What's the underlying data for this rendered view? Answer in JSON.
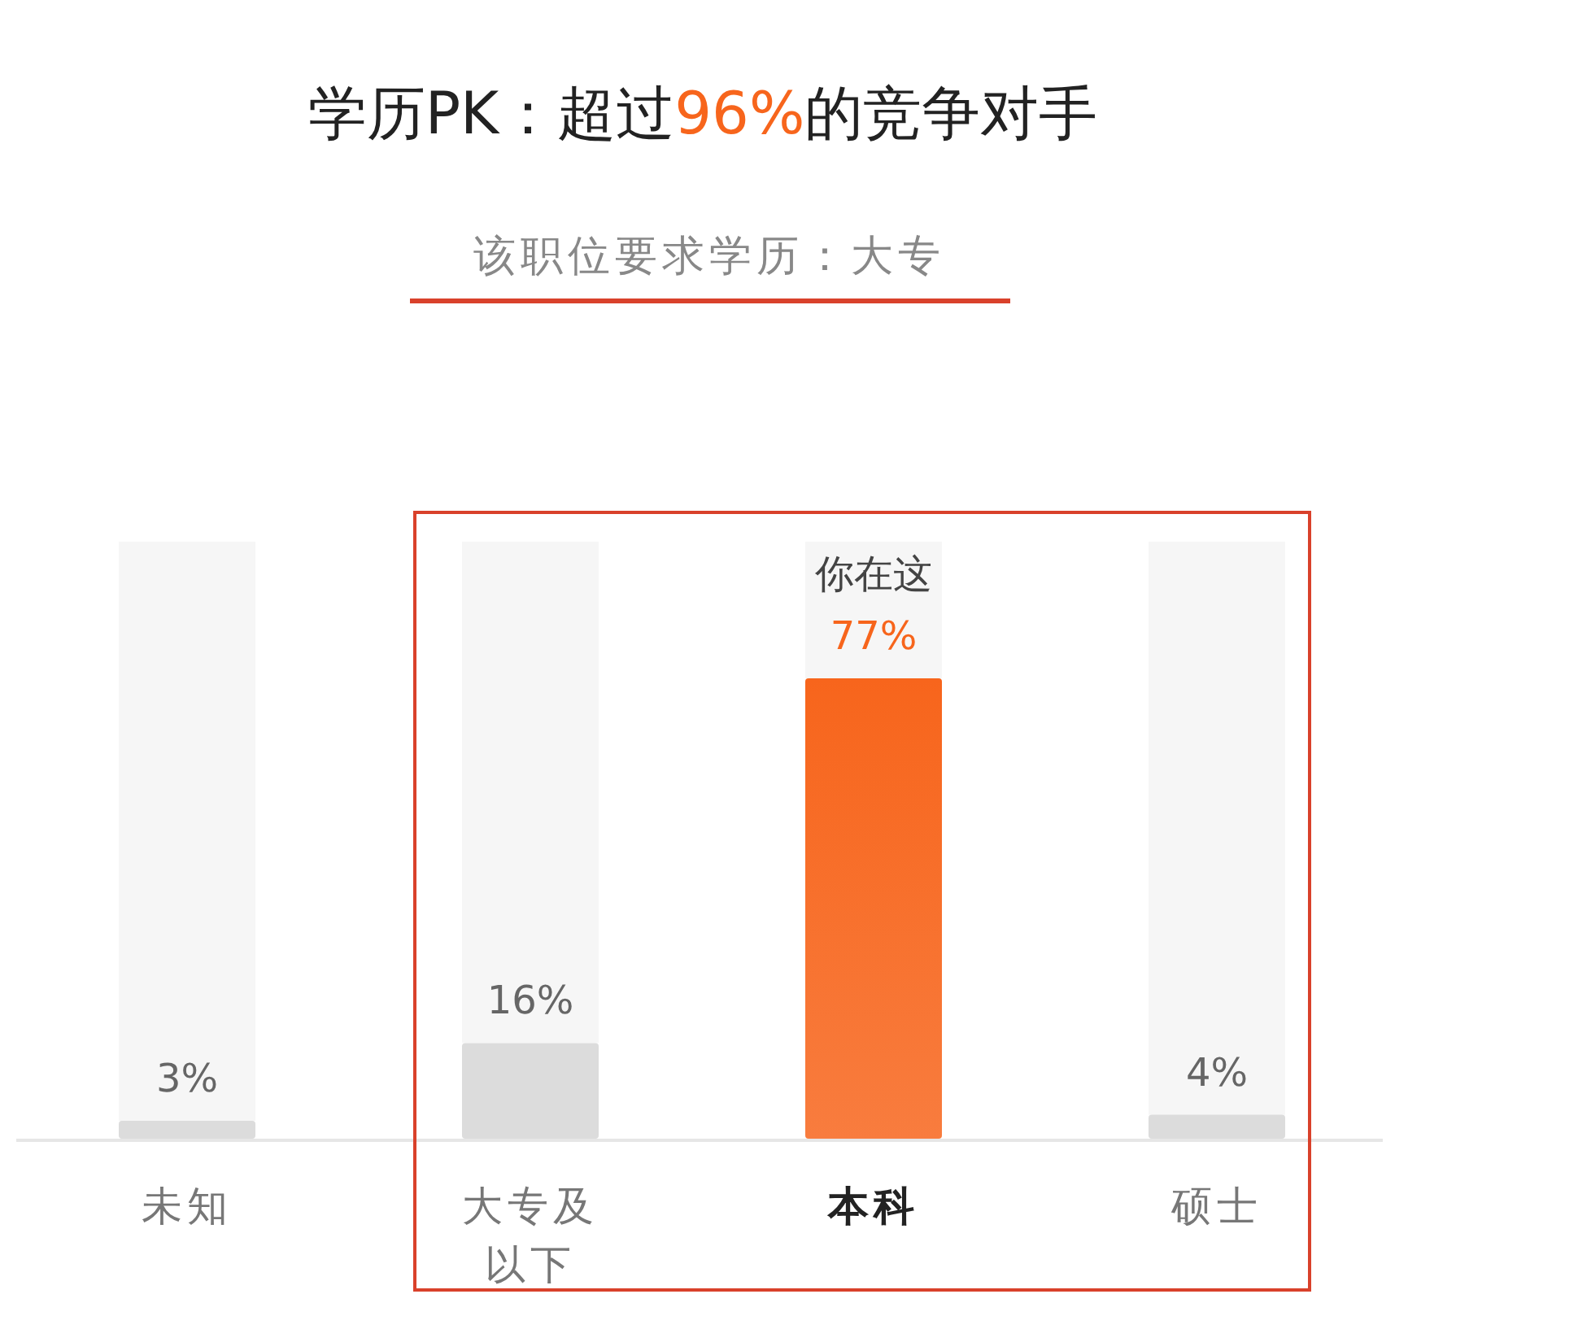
{
  "chart_data": {
    "type": "bar",
    "title": "学历PK：超过96%的竞争对手",
    "subtitle": "该职位要求学历：大专",
    "categories": [
      "未知",
      "大专及以下",
      "本科",
      "硕士"
    ],
    "values": [
      3,
      16,
      77,
      4
    ],
    "colors": [
      "#dcdcdc",
      "#dcdcdc",
      "#f7651c",
      "#dcdcdc"
    ],
    "value_labels": [
      "3%",
      "16%",
      "77%",
      "4%"
    ],
    "annotations": [
      {
        "text": "你在这",
        "x": "本科",
        "y": 77
      }
    ]
  }
}
